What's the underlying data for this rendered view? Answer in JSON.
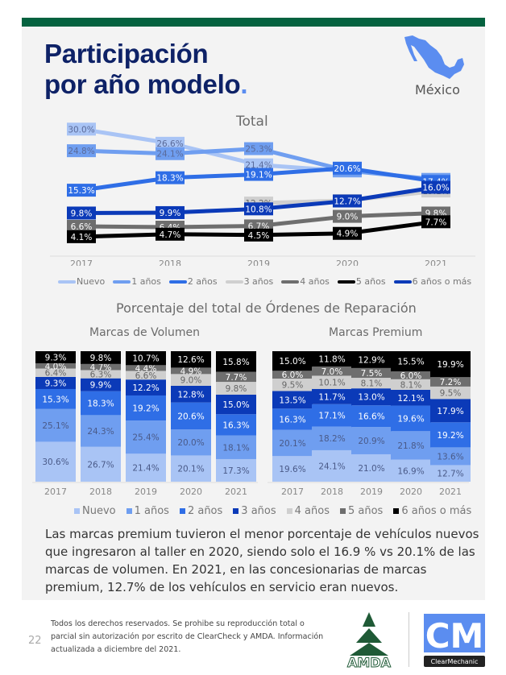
{
  "header": {
    "title_line1": "Participación",
    "title_line2": "por año modelo",
    "title_dot": ".",
    "country": "México",
    "accent_color": "#04623f",
    "title_color": "#0e2267"
  },
  "chart_data": [
    {
      "type": "line",
      "title": "Total",
      "x": [
        "2017",
        "2018",
        "2019",
        "2020",
        "2021"
      ],
      "xlabel": "",
      "ylabel": "",
      "ylim": [
        0,
        32
      ],
      "grid": false,
      "legend_position": "bottom",
      "series": [
        {
          "name": "Nuevo",
          "color": "#a9c4f5",
          "values": [
            30.0,
            26.6,
            21.4,
            19.9,
            null
          ]
        },
        {
          "name": "1 años",
          "color": "#6f9ef0",
          "values": [
            24.8,
            24.1,
            25.3,
            20.0,
            17.9
          ]
        },
        {
          "name": "2 años",
          "color": "#2f6ee6",
          "values": [
            15.3,
            18.3,
            19.1,
            20.6,
            17.4
          ]
        },
        {
          "name": "3 años",
          "color": "#cfcfcf",
          "values": [
            null,
            null,
            12.2,
            12.8,
            15.1
          ]
        },
        {
          "name": "4 años",
          "color": "#6e6e6e",
          "values": [
            6.6,
            6.4,
            6.7,
            9.0,
            9.8
          ]
        },
        {
          "name": "5 años",
          "color": "#000000",
          "values": [
            4.1,
            4.7,
            4.5,
            4.9,
            7.7
          ]
        },
        {
          "name": "6 años o más",
          "color": "#0b3ab8",
          "values": [
            9.8,
            9.9,
            10.8,
            12.7,
            16.0
          ]
        }
      ]
    },
    {
      "type": "bar",
      "stacked": true,
      "title": "Marcas de Volumen",
      "categories": [
        "2017",
        "2018",
        "2019",
        "2020",
        "2021"
      ],
      "series": [
        {
          "name": "Nuevo",
          "color": "#a9c4f5",
          "values": [
            30.6,
            26.7,
            21.4,
            20.1,
            17.3
          ]
        },
        {
          "name": "1 años",
          "color": "#6f9ef0",
          "values": [
            25.1,
            24.3,
            25.4,
            20.0,
            18.1
          ]
        },
        {
          "name": "2 años",
          "color": "#2f6ee6",
          "values": [
            15.3,
            18.3,
            19.2,
            20.6,
            16.3
          ]
        },
        {
          "name": "3 años",
          "color": "#0b3ab8",
          "values": [
            9.3,
            9.9,
            12.2,
            12.8,
            15.0
          ]
        },
        {
          "name": "4 años",
          "color": "#cfcfcf",
          "values": [
            6.4,
            6.3,
            6.6,
            9.0,
            9.8
          ]
        },
        {
          "name": "5 años",
          "color": "#6e6e6e",
          "values": [
            4.0,
            4.7,
            4.4,
            4.9,
            7.7
          ]
        },
        {
          "name": "6 años o más",
          "color": "#000000",
          "values": [
            9.3,
            9.8,
            10.7,
            12.6,
            15.8
          ]
        }
      ]
    },
    {
      "type": "bar",
      "stacked": true,
      "title": "Marcas Premium",
      "categories": [
        "2017",
        "2018",
        "2019",
        "2020",
        "2021"
      ],
      "series": [
        {
          "name": "Nuevo",
          "color": "#a9c4f5",
          "values": [
            19.6,
            24.1,
            21.0,
            16.9,
            12.7
          ]
        },
        {
          "name": "1 años",
          "color": "#6f9ef0",
          "values": [
            20.1,
            18.2,
            20.9,
            21.8,
            13.6
          ]
        },
        {
          "name": "2 años",
          "color": "#2f6ee6",
          "values": [
            16.3,
            17.1,
            16.6,
            19.6,
            19.2
          ]
        },
        {
          "name": "3 años",
          "color": "#0b3ab8",
          "values": [
            13.5,
            11.7,
            13.0,
            12.1,
            17.9
          ]
        },
        {
          "name": "4 años",
          "color": "#cfcfcf",
          "values": [
            9.5,
            10.1,
            8.1,
            8.1,
            9.5
          ]
        },
        {
          "name": "5 años",
          "color": "#6e6e6e",
          "values": [
            6.0,
            7.0,
            7.5,
            6.0,
            7.2
          ]
        },
        {
          "name": "6 años o más",
          "color": "#000000",
          "values": [
            15.0,
            11.8,
            12.9,
            15.5,
            19.9
          ]
        }
      ]
    }
  ],
  "bars_section": {
    "title": "Porcentaje del total de Órdenes de Reparación"
  },
  "paragraph": "Las marcas premium tuvieron el menor porcentaje de vehículos nuevos que ingresaron al taller en 2020, siendo solo el 16.9 % vs 20.1% de las marcas de volumen. En 2021, en las concesionarias de marcas premium, 12.7% de los vehículos en servicio eran nuevos.",
  "footer": {
    "page_number": "22",
    "text": "Todos los derechos reservados. Se prohibe su reproducción total o parcial sin autorización por escrito de ClearCheck y AMDA. Información actualizada a diciembre del 2021.",
    "logo1": "AMDA",
    "logo2_letters": "CM",
    "logo2_name": "ClearMechanic"
  }
}
